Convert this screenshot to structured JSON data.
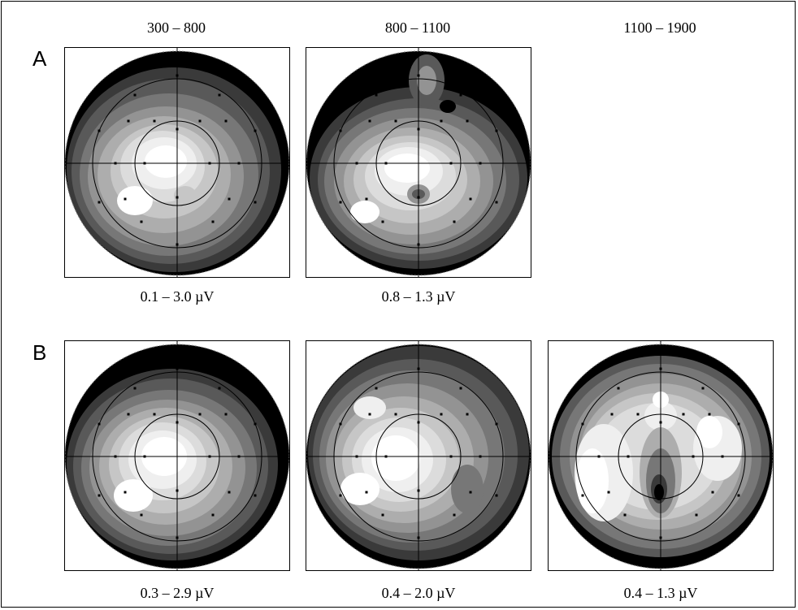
{
  "columns": [
    {
      "label": "300 – 800"
    },
    {
      "label": "800 – 1100"
    },
    {
      "label": "1100 – 1900"
    }
  ],
  "rows": [
    {
      "label": "A",
      "maps": [
        {
          "range": "0.1 – 3.0 µV"
        },
        {
          "range": "0.8 – 1.3 µV"
        }
      ]
    },
    {
      "label": "B",
      "maps": [
        {
          "range": "0.3 – 2.9 µV"
        },
        {
          "range": "0.4 – 2.0 µV"
        },
        {
          "range": "0.4 – 1.3 µV"
        }
      ]
    }
  ],
  "colors": {
    "contour_levels": [
      "#000000",
      "#3a3a3a",
      "#595959",
      "#777777",
      "#939393",
      "#adadad",
      "#c6c6c6",
      "#dcdcdc",
      "#efefef",
      "#ffffff"
    ]
  }
}
